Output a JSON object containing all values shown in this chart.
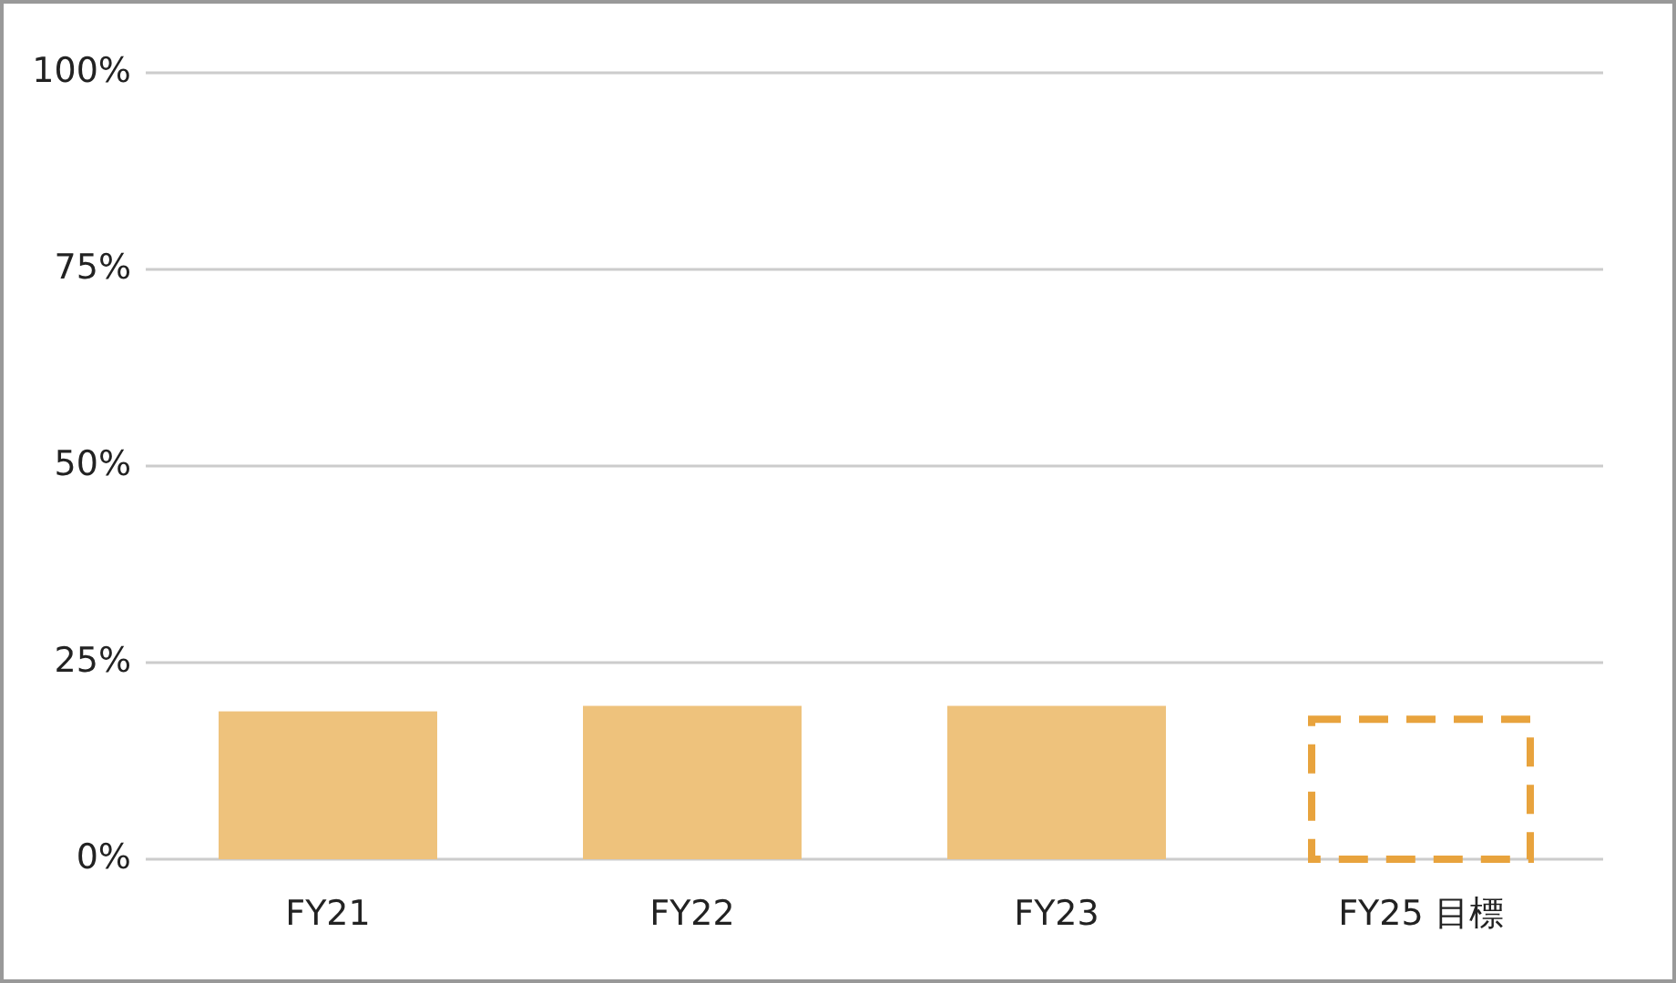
{
  "chart_data": {
    "type": "bar",
    "categories": [
      "FY21",
      "FY22",
      "FY23",
      "FY25 目標"
    ],
    "stacked": true,
    "series": [
      {
        "color": "#eec27c",
        "values": [
          18.8,
          19.5,
          19.5,
          null
        ]
      },
      {
        "color": "#e8a33d",
        "line_style": "dashed",
        "values": [
          null,
          null,
          null,
          17.8
        ]
      }
    ],
    "ylim": [
      0,
      100
    ],
    "yticks": [
      {
        "value": 0,
        "label": "0%"
      },
      {
        "value": 25,
        "label": "25%"
      },
      {
        "value": 50,
        "label": "50%"
      },
      {
        "value": 75,
        "label": "75%"
      },
      {
        "value": 100,
        "label": "100%"
      }
    ],
    "grid": "y"
  }
}
